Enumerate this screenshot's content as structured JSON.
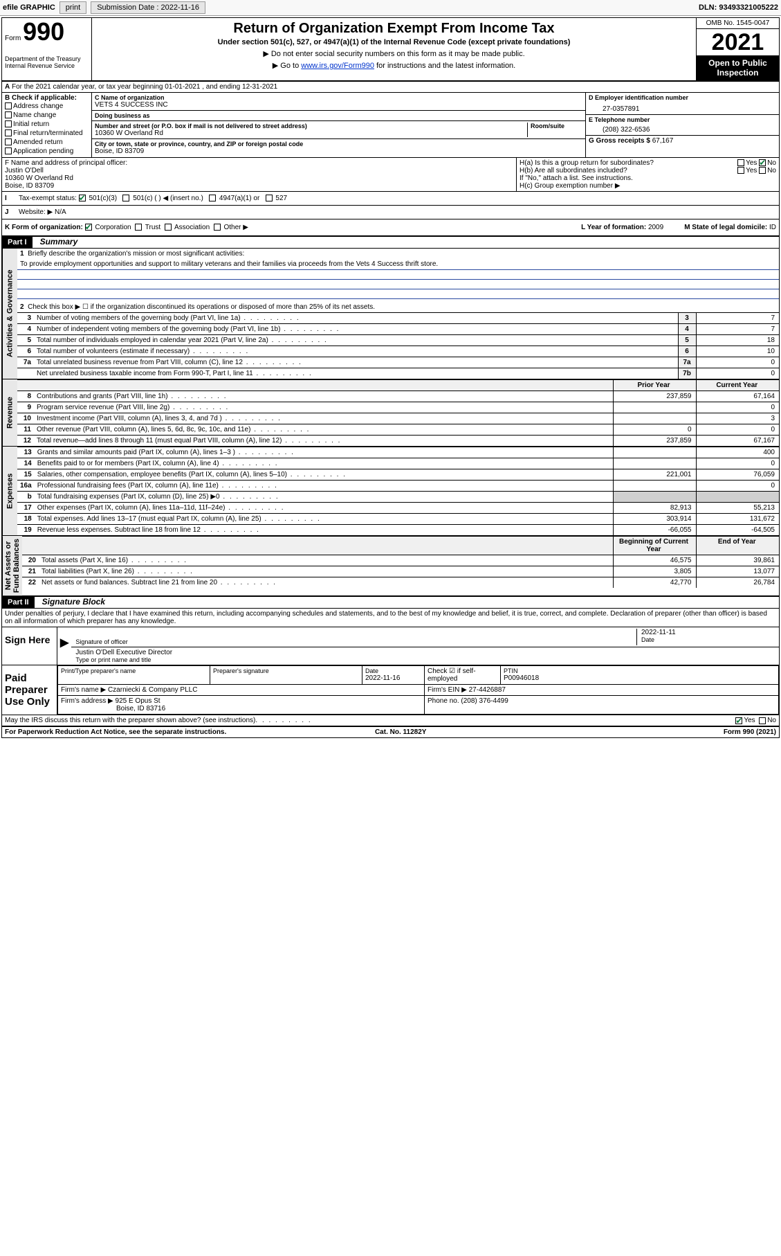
{
  "topbar": {
    "efile": "efile GRAPHIC",
    "print": "print",
    "sub_lbl": "Submission Date : 2022-11-16",
    "dln": "DLN: 93493321005222"
  },
  "hdr": {
    "form_word": "Form",
    "form_no": "990",
    "dept": "Department of the Treasury\nInternal Revenue Service",
    "title": "Return of Organization Exempt From Income Tax",
    "subtitle": "Under section 501(c), 527, or 4947(a)(1) of the Internal Revenue Code (except private foundations)",
    "note1": "▶ Do not enter social security numbers on this form as it may be made public.",
    "note2_a": "▶ Go to ",
    "note2_link": "www.irs.gov/Form990",
    "note2_b": " for instructions and the latest information.",
    "omb": "OMB No. 1545-0047",
    "year": "2021",
    "otp": "Open to Public Inspection"
  },
  "A": {
    "text": "For the 2021 calendar year, or tax year beginning 01-01-2021  , and ending 12-31-2021"
  },
  "B": {
    "title": "B Check if applicable:",
    "items": [
      "Address change",
      "Name change",
      "Initial return",
      "Final return/terminated",
      "Amended return",
      "Application pending"
    ]
  },
  "C": {
    "name_lbl": "C Name of organization",
    "name": "VETS 4 SUCCESS INC",
    "dba_lbl": "Doing business as",
    "dba": "",
    "addr_lbl": "Number and street (or P.O. box if mail is not delivered to street address)",
    "room_lbl": "Room/suite",
    "addr": "10360 W Overland Rd",
    "city_lbl": "City or town, state or province, country, and ZIP or foreign postal code",
    "city": "Boise, ID  83709"
  },
  "D": {
    "lbl": "D Employer identification number",
    "val": "27-0357891"
  },
  "E": {
    "lbl": "E Telephone number",
    "val": "(208) 322-6536"
  },
  "G": {
    "lbl": "G Gross receipts $",
    "val": "67,167"
  },
  "F": {
    "lbl": "F Name and address of principal officer:",
    "name": "Justin O'Dell",
    "addr": "10360 W Overland Rd",
    "city": "Boise, ID  83709"
  },
  "H": {
    "a": "H(a)  Is this a group return for subordinates?",
    "b": "H(b)  Are all subordinates included?",
    "b_note": "If \"No,\" attach a list. See instructions.",
    "c": "H(c)  Group exemption number ▶",
    "yes": "Yes",
    "no": "No"
  },
  "I": {
    "lbl": "Tax-exempt status:",
    "opts": [
      "501(c)(3)",
      "501(c) (  ) ◀ (insert no.)",
      "4947(a)(1) or",
      "527"
    ]
  },
  "J": {
    "lbl": "Website: ▶",
    "val": "N/A"
  },
  "K": {
    "lbl": "K Form of organization:",
    "opts": [
      "Corporation",
      "Trust",
      "Association",
      "Other ▶"
    ]
  },
  "L": {
    "lbl": "L Year of formation:",
    "val": "2009"
  },
  "M": {
    "lbl": "M State of legal domicile:",
    "val": "ID"
  },
  "part1": {
    "hdr": "Part I",
    "title": "Summary"
  },
  "sum": {
    "l1_lbl": "Briefly describe the organization's mission or most significant activities:",
    "l1_val": "To provide employment opportunities and support to military veterans and their families via proceeds from the Vets 4 Success thrift store.",
    "l2": "Check this box ▶ ☐  if the organization discontinued its operations or disposed of more than 25% of its net assets.",
    "rows_a": [
      {
        "n": "3",
        "t": "Number of voting members of the governing body (Part VI, line 1a)",
        "ln": "3",
        "v": "7"
      },
      {
        "n": "4",
        "t": "Number of independent voting members of the governing body (Part VI, line 1b)",
        "ln": "4",
        "v": "7"
      },
      {
        "n": "5",
        "t": "Total number of individuals employed in calendar year 2021 (Part V, line 2a)",
        "ln": "5",
        "v": "18"
      },
      {
        "n": "6",
        "t": "Total number of volunteers (estimate if necessary)",
        "ln": "6",
        "v": "10"
      },
      {
        "n": "7a",
        "t": "Total unrelated business revenue from Part VIII, column (C), line 12",
        "ln": "7a",
        "v": "0"
      },
      {
        "n": "",
        "t": "Net unrelated business taxable income from Form 990-T, Part I, line 11",
        "ln": "7b",
        "v": "0"
      }
    ],
    "col_prior": "Prior Year",
    "col_curr": "Current Year",
    "col_beg": "Beginning of Current Year",
    "col_end": "End of Year",
    "rev": [
      {
        "n": "8",
        "t": "Contributions and grants (Part VIII, line 1h)",
        "p": "237,859",
        "c": "67,164"
      },
      {
        "n": "9",
        "t": "Program service revenue (Part VIII, line 2g)",
        "p": "",
        "c": "0"
      },
      {
        "n": "10",
        "t": "Investment income (Part VIII, column (A), lines 3, 4, and 7d )",
        "p": "",
        "c": "3"
      },
      {
        "n": "11",
        "t": "Other revenue (Part VIII, column (A), lines 5, 6d, 8c, 9c, 10c, and 11e)",
        "p": "0",
        "c": "0"
      },
      {
        "n": "12",
        "t": "Total revenue—add lines 8 through 11 (must equal Part VIII, column (A), line 12)",
        "p": "237,859",
        "c": "67,167"
      }
    ],
    "exp": [
      {
        "n": "13",
        "t": "Grants and similar amounts paid (Part IX, column (A), lines 1–3 )",
        "p": "",
        "c": "400"
      },
      {
        "n": "14",
        "t": "Benefits paid to or for members (Part IX, column (A), line 4)",
        "p": "",
        "c": "0"
      },
      {
        "n": "15",
        "t": "Salaries, other compensation, employee benefits (Part IX, column (A), lines 5–10)",
        "p": "221,001",
        "c": "76,059"
      },
      {
        "n": "16a",
        "t": "Professional fundraising fees (Part IX, column (A), line 11e)",
        "p": "",
        "c": "0"
      },
      {
        "n": "b",
        "t": "Total fundraising expenses (Part IX, column (D), line 25) ▶0",
        "p": "SHADE",
        "c": "SHADE"
      },
      {
        "n": "17",
        "t": "Other expenses (Part IX, column (A), lines 11a–11d, 11f–24e)",
        "p": "82,913",
        "c": "55,213"
      },
      {
        "n": "18",
        "t": "Total expenses. Add lines 13–17 (must equal Part IX, column (A), line 25)",
        "p": "303,914",
        "c": "131,672"
      },
      {
        "n": "19",
        "t": "Revenue less expenses. Subtract line 18 from line 12",
        "p": "-66,055",
        "c": "-64,505"
      }
    ],
    "net": [
      {
        "n": "20",
        "t": "Total assets (Part X, line 16)",
        "p": "46,575",
        "c": "39,861"
      },
      {
        "n": "21",
        "t": "Total liabilities (Part X, line 26)",
        "p": "3,805",
        "c": "13,077"
      },
      {
        "n": "22",
        "t": "Net assets or fund balances. Subtract line 21 from line 20",
        "p": "42,770",
        "c": "26,784"
      }
    ]
  },
  "vtabs": {
    "ag": "Activities & Governance",
    "rev": "Revenue",
    "exp": "Expenses",
    "net": "Net Assets or\nFund Balances"
  },
  "part2": {
    "hdr": "Part II",
    "title": "Signature Block"
  },
  "sig": {
    "decl": "Under penalties of perjury, I declare that I have examined this return, including accompanying schedules and statements, and to the best of my knowledge and belief, it is true, correct, and complete. Declaration of preparer (other than officer) is based on all information of which preparer has any knowledge.",
    "sign_here": "Sign Here",
    "sig_officer": "Signature of officer",
    "date_lbl": "Date",
    "date": "2022-11-11",
    "name_title": "Justin O'Dell  Executive Director",
    "type_lbl": "Type or print name and title",
    "paid": "Paid Preparer Use Only",
    "prep_name_lbl": "Print/Type preparer's name",
    "prep_sig_lbl": "Preparer's signature",
    "prep_date_lbl": "Date",
    "prep_date": "2022-11-16",
    "check_se": "Check ☑ if self-employed",
    "ptin_lbl": "PTIN",
    "ptin": "P00946018",
    "firm_name_lbl": "Firm's name   ▶",
    "firm_name": "Czarniecki & Company PLLC",
    "firm_ein_lbl": "Firm's EIN ▶",
    "firm_ein": "27-4426887",
    "firm_addr_lbl": "Firm's address ▶",
    "firm_addr": "925 E Opus St",
    "firm_city": "Boise, ID  83716",
    "phone_lbl": "Phone no.",
    "phone": "(208) 376-4499",
    "discuss": "May the IRS discuss this return with the preparer shown above? (see instructions)",
    "yes": "Yes",
    "no": "No"
  },
  "foot": {
    "l": "For Paperwork Reduction Act Notice, see the separate instructions.",
    "m": "Cat. No. 11282Y",
    "r": "Form 990 (2021)"
  }
}
